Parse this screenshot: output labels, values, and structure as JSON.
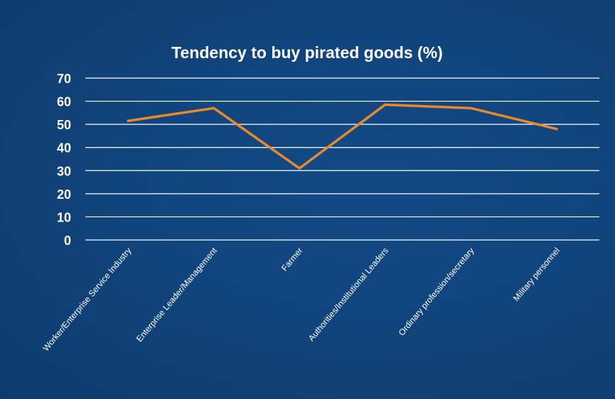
{
  "chart_data": {
    "type": "line",
    "title": "Tendency to buy pirated goods (%)",
    "categories": [
      "Worker/Enterprise Service Industry",
      "Enterprise Leader/Management",
      "Farmer",
      "Authorities/Institutional Leaders",
      "Ordinary profession/secretary",
      "Military personnel"
    ],
    "series": [
      {
        "values": [
          51.5,
          57,
          31,
          58.5,
          57,
          48
        ]
      }
    ],
    "ylim": [
      0,
      70
    ],
    "yticks": [
      "0",
      "10",
      "20",
      "30",
      "40",
      "50",
      "60",
      "70"
    ],
    "grid": true,
    "legend": "none",
    "colors": {
      "line": "#e8892b",
      "grid": "#ffffff",
      "background": "#10437a",
      "text": "#ffffff"
    }
  }
}
